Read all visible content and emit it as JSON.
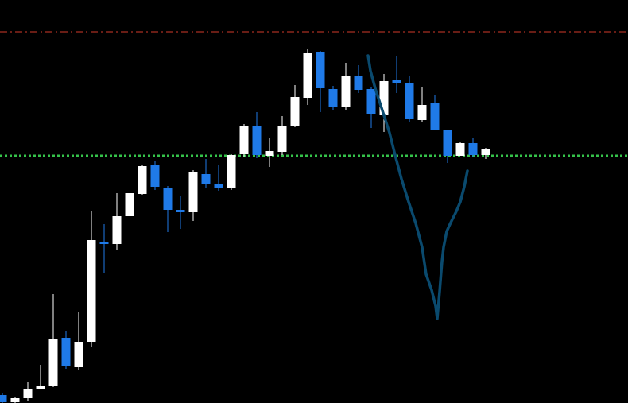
{
  "chart_data": {
    "type": "candlestick",
    "title": "",
    "xlabel": "",
    "ylabel": "",
    "grid": false,
    "legend": "none",
    "ylim": [
      0,
      507
    ],
    "colors": {
      "background": "#000000",
      "bull": "#ffffff",
      "bear": "#1f7ae8",
      "resistance_line": "#d23a2a",
      "support_line": "#35c24a",
      "drawn_curve": "#0a4a6e"
    },
    "levels": {
      "resistance": 467,
      "support": 311
    },
    "candles": [
      {
        "i": 0,
        "o": 10,
        "c": 1,
        "h": 13,
        "l": 0
      },
      {
        "i": 1,
        "o": 1,
        "c": 6,
        "h": 7,
        "l": 0
      },
      {
        "i": 2,
        "o": 6,
        "c": 18,
        "h": 26,
        "l": 2
      },
      {
        "i": 3,
        "o": 18,
        "c": 22,
        "h": 48,
        "l": 18
      },
      {
        "i": 4,
        "o": 22,
        "c": 80,
        "h": 137,
        "l": 20
      },
      {
        "i": 5,
        "o": 82,
        "c": 46,
        "h": 91,
        "l": 43
      },
      {
        "i": 6,
        "o": 45,
        "c": 77,
        "h": 114,
        "l": 42
      },
      {
        "i": 7,
        "o": 77,
        "c": 205,
        "h": 242,
        "l": 70
      },
      {
        "i": 8,
        "o": 203,
        "c": 201,
        "h": 225,
        "l": 164
      },
      {
        "i": 9,
        "o": 200,
        "c": 235,
        "h": 264,
        "l": 193
      },
      {
        "i": 10,
        "o": 235,
        "c": 264,
        "h": 264,
        "l": 235
      },
      {
        "i": 11,
        "o": 263,
        "c": 298,
        "h": 299,
        "l": 262
      },
      {
        "i": 12,
        "o": 299,
        "c": 272,
        "h": 305,
        "l": 268
      },
      {
        "i": 13,
        "o": 270,
        "c": 243,
        "h": 273,
        "l": 215
      },
      {
        "i": 14,
        "o": 243,
        "c": 242,
        "h": 261,
        "l": 219
      },
      {
        "i": 15,
        "o": 240,
        "c": 291,
        "h": 293,
        "l": 229
      },
      {
        "i": 16,
        "o": 288,
        "c": 276,
        "h": 307,
        "l": 271
      },
      {
        "i": 17,
        "o": 275,
        "c": 271,
        "h": 300,
        "l": 267
      },
      {
        "i": 18,
        "o": 270,
        "c": 312,
        "h": 313,
        "l": 268
      },
      {
        "i": 19,
        "o": 313,
        "c": 349,
        "h": 351,
        "l": 310
      },
      {
        "i": 20,
        "o": 348,
        "c": 312,
        "h": 366,
        "l": 308
      },
      {
        "i": 21,
        "o": 311,
        "c": 317,
        "h": 334,
        "l": 297
      },
      {
        "i": 22,
        "o": 316,
        "c": 349,
        "h": 361,
        "l": 312
      },
      {
        "i": 23,
        "o": 349,
        "c": 385,
        "h": 400,
        "l": 347
      },
      {
        "i": 24,
        "o": 384,
        "c": 440,
        "h": 445,
        "l": 375
      },
      {
        "i": 25,
        "o": 441,
        "c": 396,
        "h": 443,
        "l": 366
      },
      {
        "i": 26,
        "o": 395,
        "c": 372,
        "h": 399,
        "l": 369
      },
      {
        "i": 27,
        "o": 372,
        "c": 412,
        "h": 428,
        "l": 369
      },
      {
        "i": 28,
        "o": 411,
        "c": 394,
        "h": 425,
        "l": 390
      },
      {
        "i": 29,
        "o": 395,
        "c": 363,
        "h": 398,
        "l": 346
      },
      {
        "i": 30,
        "o": 362,
        "c": 405,
        "h": 414,
        "l": 341
      },
      {
        "i": 31,
        "o": 406,
        "c": 404,
        "h": 437,
        "l": 390
      },
      {
        "i": 32,
        "o": 403,
        "c": 357,
        "h": 411,
        "l": 354
      },
      {
        "i": 33,
        "o": 356,
        "c": 375,
        "h": 397,
        "l": 354
      },
      {
        "i": 34,
        "o": 377,
        "c": 344,
        "h": 387,
        "l": 343
      },
      {
        "i": 35,
        "o": 344,
        "c": 311,
        "h": 344,
        "l": 302
      },
      {
        "i": 36,
        "o": 311,
        "c": 327,
        "h": 328,
        "l": 311
      },
      {
        "i": 37,
        "o": 327,
        "c": 312,
        "h": 334,
        "l": 309
      },
      {
        "i": 38,
        "o": 312,
        "c": 319,
        "h": 321,
        "l": 307
      }
    ],
    "drawn_curve": [
      [
        463,
        437
      ],
      [
        466,
        418
      ],
      [
        472,
        396
      ],
      [
        481,
        368
      ],
      [
        490,
        340
      ],
      [
        497,
        312
      ],
      [
        505,
        282
      ],
      [
        514,
        253
      ],
      [
        523,
        226
      ],
      [
        531,
        196
      ],
      [
        536,
        162
      ],
      [
        543,
        142
      ],
      [
        548,
        122
      ],
      [
        550,
        106
      ],
      [
        553,
        140
      ],
      [
        556,
        178
      ],
      [
        558,
        196
      ],
      [
        562,
        216
      ],
      [
        567,
        227
      ],
      [
        574,
        241
      ],
      [
        579,
        253
      ],
      [
        584,
        272
      ],
      [
        588,
        292
      ]
    ]
  }
}
